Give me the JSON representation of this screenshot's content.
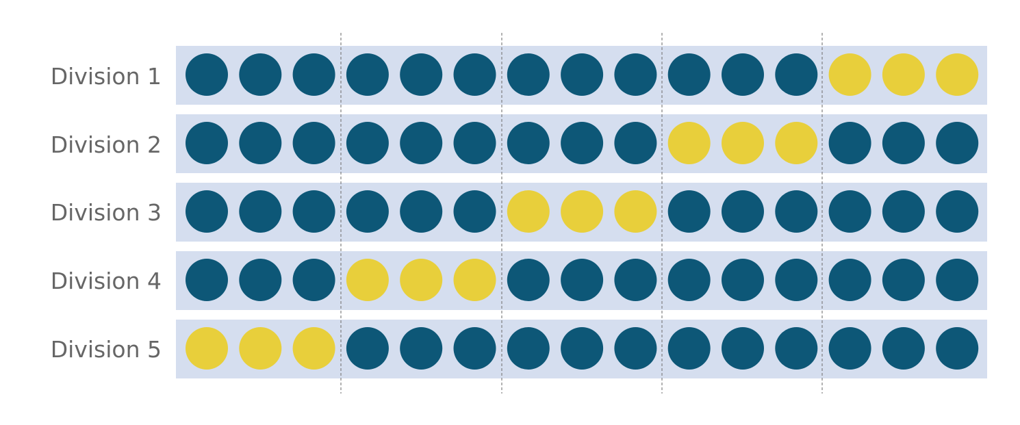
{
  "colors": {
    "band": "#d5deef",
    "navy": "#0d5777",
    "yellow": "#e8cf3b",
    "divider": "#7f7f7f",
    "label": "#666666"
  },
  "groups_per_row": 5,
  "dots_per_group": 3,
  "rows": [
    {
      "label": "Division 1",
      "highlight_group": 5
    },
    {
      "label": "Division 2",
      "highlight_group": 4
    },
    {
      "label": "Division 3",
      "highlight_group": 3
    },
    {
      "label": "Division 4",
      "highlight_group": 2
    },
    {
      "label": "Division 5",
      "highlight_group": 1
    }
  ]
}
